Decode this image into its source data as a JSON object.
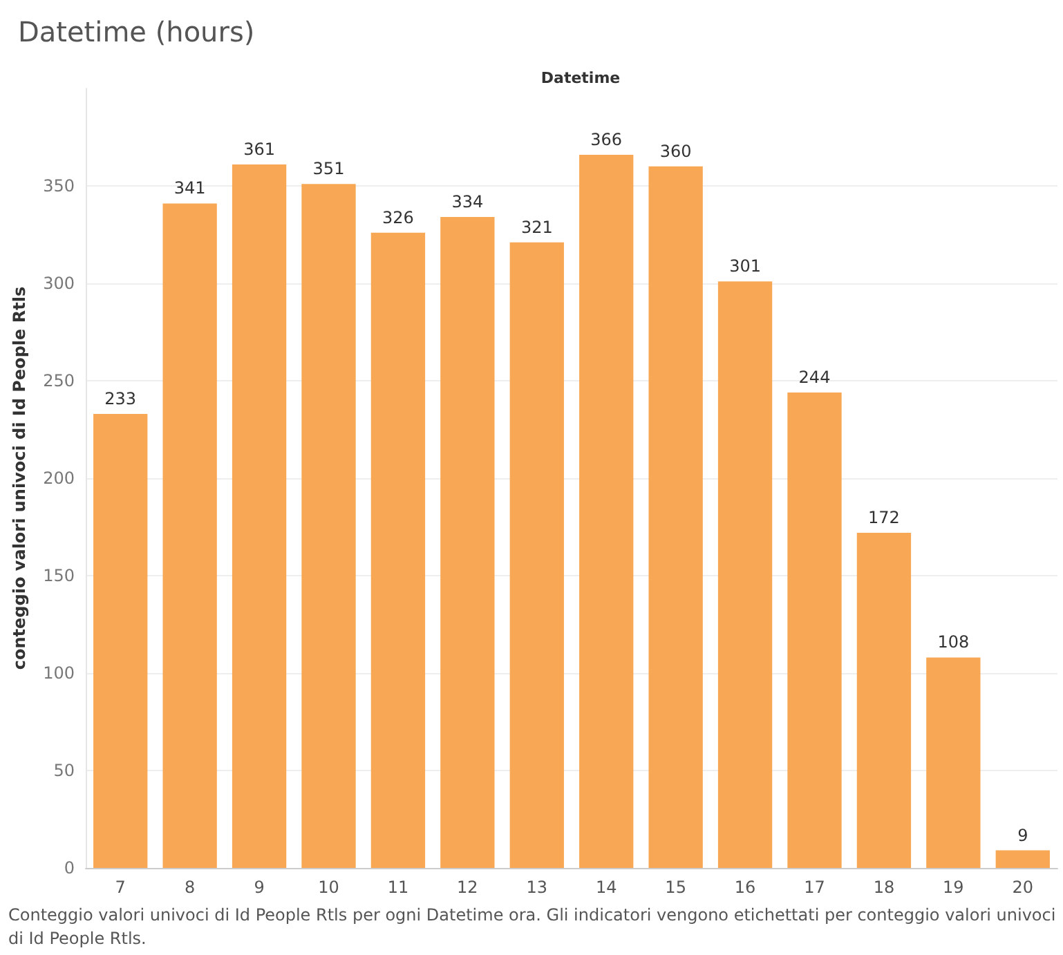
{
  "chart_data": {
    "type": "bar",
    "title": "Datetime (hours)",
    "xlabel": "Datetime",
    "ylabel": "conteggio valori univoci di Id People Rtls",
    "categories": [
      "7",
      "8",
      "9",
      "10",
      "11",
      "12",
      "13",
      "14",
      "15",
      "16",
      "17",
      "18",
      "19",
      "20"
    ],
    "values": [
      233,
      341,
      361,
      351,
      326,
      334,
      321,
      366,
      360,
      301,
      244,
      172,
      108,
      9
    ],
    "color": "#f8a854",
    "data_labels": true,
    "ylim": [
      0,
      400
    ],
    "yticks": [
      0,
      50,
      100,
      150,
      200,
      250,
      300,
      350
    ],
    "grid": "y",
    "annotations": [
      "Conteggio valori univoci di Id People Rtls per ogni Datetime ora. Gli indicatori vengono etichettati per conteggio valori univoci di Id People Rtls."
    ]
  }
}
